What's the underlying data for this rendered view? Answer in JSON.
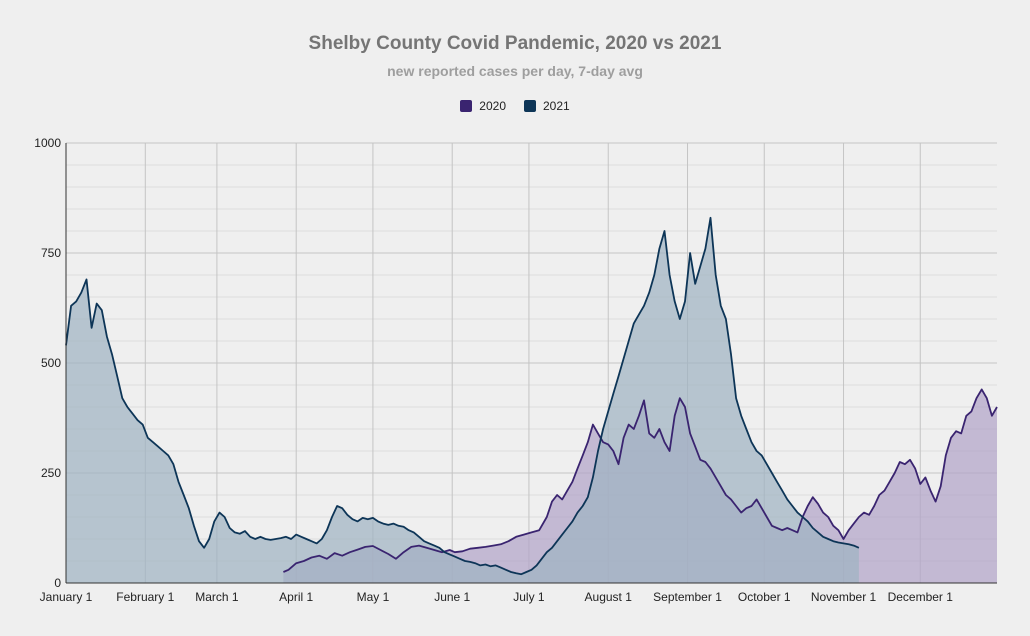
{
  "chart_data": {
    "type": "area",
    "title": "Shelby County Covid Pandemic, 2020 vs 2021",
    "subtitle": "new reported cases per day, 7-day avg",
    "xlabel": "",
    "ylabel": "",
    "ylim": [
      0,
      1000
    ],
    "yticks": [
      0,
      250,
      500,
      750,
      1000
    ],
    "xlim": [
      "01-01",
      "12-31"
    ],
    "xticks": [
      {
        "date": "01-01",
        "label": "January 1"
      },
      {
        "date": "02-01",
        "label": "February 1"
      },
      {
        "date": "03-01",
        "label": "March 1"
      },
      {
        "date": "04-01",
        "label": "April 1"
      },
      {
        "date": "05-01",
        "label": "May 1"
      },
      {
        "date": "06-01",
        "label": "June 1"
      },
      {
        "date": "07-01",
        "label": "July 1"
      },
      {
        "date": "08-01",
        "label": "August 1"
      },
      {
        "date": "09-01",
        "label": "September 1"
      },
      {
        "date": "10-01",
        "label": "October 1"
      },
      {
        "date": "11-01",
        "label": "November 1"
      },
      {
        "date": "12-01",
        "label": "December 1"
      }
    ],
    "grid": true,
    "legend_position": "top-center",
    "series": [
      {
        "name": "2020",
        "color": "#3a2470",
        "fill": "#b2a3c8",
        "points": [
          [
            "03-27",
            25
          ],
          [
            "03-29",
            30
          ],
          [
            "04-01",
            45
          ],
          [
            "04-04",
            50
          ],
          [
            "04-07",
            58
          ],
          [
            "04-10",
            62
          ],
          [
            "04-13",
            55
          ],
          [
            "04-16",
            68
          ],
          [
            "04-19",
            62
          ],
          [
            "04-22",
            70
          ],
          [
            "04-25",
            76
          ],
          [
            "04-28",
            82
          ],
          [
            "05-01",
            84
          ],
          [
            "05-04",
            75
          ],
          [
            "05-07",
            66
          ],
          [
            "05-10",
            55
          ],
          [
            "05-13",
            70
          ],
          [
            "05-16",
            82
          ],
          [
            "05-19",
            85
          ],
          [
            "05-22",
            80
          ],
          [
            "05-25",
            75
          ],
          [
            "05-28",
            70
          ],
          [
            "05-31",
            75
          ],
          [
            "06-02",
            70
          ],
          [
            "06-05",
            72
          ],
          [
            "06-08",
            78
          ],
          [
            "06-11",
            80
          ],
          [
            "06-14",
            82
          ],
          [
            "06-17",
            85
          ],
          [
            "06-20",
            88
          ],
          [
            "06-23",
            95
          ],
          [
            "06-26",
            105
          ],
          [
            "06-29",
            110
          ],
          [
            "07-02",
            115
          ],
          [
            "07-05",
            120
          ],
          [
            "07-08",
            150
          ],
          [
            "07-10",
            185
          ],
          [
            "07-12",
            200
          ],
          [
            "07-14",
            190
          ],
          [
            "07-16",
            210
          ],
          [
            "07-18",
            230
          ],
          [
            "07-20",
            260
          ],
          [
            "07-22",
            290
          ],
          [
            "07-24",
            320
          ],
          [
            "07-26",
            360
          ],
          [
            "07-28",
            340
          ],
          [
            "07-30",
            320
          ],
          [
            "08-01",
            315
          ],
          [
            "08-03",
            300
          ],
          [
            "08-05",
            270
          ],
          [
            "08-07",
            330
          ],
          [
            "08-09",
            360
          ],
          [
            "08-11",
            350
          ],
          [
            "08-13",
            380
          ],
          [
            "08-15",
            415
          ],
          [
            "08-17",
            340
          ],
          [
            "08-19",
            330
          ],
          [
            "08-21",
            350
          ],
          [
            "08-23",
            320
          ],
          [
            "08-25",
            300
          ],
          [
            "08-27",
            380
          ],
          [
            "08-29",
            420
          ],
          [
            "08-31",
            400
          ],
          [
            "09-02",
            340
          ],
          [
            "09-04",
            310
          ],
          [
            "09-06",
            280
          ],
          [
            "09-08",
            275
          ],
          [
            "09-10",
            260
          ],
          [
            "09-12",
            240
          ],
          [
            "09-14",
            220
          ],
          [
            "09-16",
            200
          ],
          [
            "09-18",
            190
          ],
          [
            "09-20",
            175
          ],
          [
            "09-22",
            160
          ],
          [
            "09-24",
            170
          ],
          [
            "09-26",
            175
          ],
          [
            "09-28",
            190
          ],
          [
            "09-30",
            170
          ],
          [
            "10-02",
            150
          ],
          [
            "10-04",
            130
          ],
          [
            "10-06",
            125
          ],
          [
            "10-08",
            120
          ],
          [
            "10-10",
            125
          ],
          [
            "10-12",
            120
          ],
          [
            "10-14",
            115
          ],
          [
            "10-16",
            150
          ],
          [
            "10-18",
            175
          ],
          [
            "10-20",
            195
          ],
          [
            "10-22",
            180
          ],
          [
            "10-24",
            160
          ],
          [
            "10-26",
            150
          ],
          [
            "10-28",
            130
          ],
          [
            "10-30",
            120
          ],
          [
            "11-01",
            100
          ],
          [
            "11-03",
            120
          ],
          [
            "11-05",
            135
          ],
          [
            "11-07",
            150
          ],
          [
            "11-09",
            160
          ],
          [
            "11-11",
            155
          ],
          [
            "11-13",
            175
          ],
          [
            "11-15",
            200
          ],
          [
            "11-17",
            210
          ],
          [
            "11-19",
            230
          ],
          [
            "11-21",
            250
          ],
          [
            "11-23",
            275
          ],
          [
            "11-25",
            270
          ],
          [
            "11-27",
            280
          ],
          [
            "11-29",
            260
          ],
          [
            "12-01",
            225
          ],
          [
            "12-03",
            240
          ],
          [
            "12-05",
            210
          ],
          [
            "12-07",
            185
          ],
          [
            "12-09",
            220
          ],
          [
            "12-11",
            290
          ],
          [
            "12-13",
            330
          ],
          [
            "12-15",
            345
          ],
          [
            "12-17",
            340
          ],
          [
            "12-19",
            380
          ],
          [
            "12-21",
            390
          ],
          [
            "12-23",
            420
          ],
          [
            "12-25",
            440
          ],
          [
            "12-27",
            420
          ],
          [
            "12-29",
            380
          ],
          [
            "12-31",
            400
          ]
        ]
      },
      {
        "name": "2021",
        "color": "#0d3557",
        "fill": "#9fb3c2",
        "points": [
          [
            "01-01",
            540
          ],
          [
            "01-03",
            630
          ],
          [
            "01-05",
            640
          ],
          [
            "01-07",
            660
          ],
          [
            "01-09",
            690
          ],
          [
            "01-11",
            580
          ],
          [
            "01-13",
            635
          ],
          [
            "01-15",
            620
          ],
          [
            "01-17",
            560
          ],
          [
            "01-19",
            520
          ],
          [
            "01-21",
            470
          ],
          [
            "01-23",
            420
          ],
          [
            "01-25",
            400
          ],
          [
            "01-27",
            385
          ],
          [
            "01-29",
            370
          ],
          [
            "01-31",
            360
          ],
          [
            "02-02",
            330
          ],
          [
            "02-04",
            320
          ],
          [
            "02-06",
            310
          ],
          [
            "02-08",
            300
          ],
          [
            "02-10",
            290
          ],
          [
            "02-12",
            270
          ],
          [
            "02-14",
            230
          ],
          [
            "02-16",
            200
          ],
          [
            "02-18",
            170
          ],
          [
            "02-20",
            130
          ],
          [
            "02-22",
            95
          ],
          [
            "02-24",
            80
          ],
          [
            "02-26",
            100
          ],
          [
            "02-28",
            140
          ],
          [
            "03-02",
            160
          ],
          [
            "03-04",
            150
          ],
          [
            "03-06",
            125
          ],
          [
            "03-08",
            115
          ],
          [
            "03-10",
            112
          ],
          [
            "03-12",
            118
          ],
          [
            "03-14",
            105
          ],
          [
            "03-16",
            100
          ],
          [
            "03-18",
            105
          ],
          [
            "03-20",
            100
          ],
          [
            "03-22",
            98
          ],
          [
            "03-24",
            100
          ],
          [
            "03-26",
            102
          ],
          [
            "03-28",
            105
          ],
          [
            "03-30",
            100
          ],
          [
            "04-01",
            110
          ],
          [
            "04-03",
            105
          ],
          [
            "04-05",
            100
          ],
          [
            "04-07",
            95
          ],
          [
            "04-09",
            90
          ],
          [
            "04-11",
            100
          ],
          [
            "04-13",
            120
          ],
          [
            "04-15",
            150
          ],
          [
            "04-17",
            175
          ],
          [
            "04-19",
            170
          ],
          [
            "04-21",
            155
          ],
          [
            "04-23",
            145
          ],
          [
            "04-25",
            140
          ],
          [
            "04-27",
            148
          ],
          [
            "04-29",
            145
          ],
          [
            "05-01",
            148
          ],
          [
            "05-03",
            140
          ],
          [
            "05-05",
            135
          ],
          [
            "05-07",
            132
          ],
          [
            "05-09",
            135
          ],
          [
            "05-11",
            130
          ],
          [
            "05-13",
            128
          ],
          [
            "05-15",
            120
          ],
          [
            "05-17",
            115
          ],
          [
            "05-19",
            105
          ],
          [
            "05-21",
            95
          ],
          [
            "05-23",
            90
          ],
          [
            "05-25",
            85
          ],
          [
            "05-27",
            80
          ],
          [
            "05-29",
            70
          ],
          [
            "05-31",
            65
          ],
          [
            "06-02",
            60
          ],
          [
            "06-04",
            55
          ],
          [
            "06-06",
            50
          ],
          [
            "06-08",
            48
          ],
          [
            "06-10",
            45
          ],
          [
            "06-12",
            40
          ],
          [
            "06-14",
            42
          ],
          [
            "06-16",
            38
          ],
          [
            "06-18",
            40
          ],
          [
            "06-20",
            35
          ],
          [
            "06-22",
            30
          ],
          [
            "06-24",
            25
          ],
          [
            "06-26",
            22
          ],
          [
            "06-28",
            20
          ],
          [
            "06-30",
            25
          ],
          [
            "07-02",
            30
          ],
          [
            "07-04",
            40
          ],
          [
            "07-06",
            55
          ],
          [
            "07-08",
            70
          ],
          [
            "07-10",
            80
          ],
          [
            "07-12",
            95
          ],
          [
            "07-14",
            110
          ],
          [
            "07-16",
            125
          ],
          [
            "07-18",
            140
          ],
          [
            "07-20",
            160
          ],
          [
            "07-22",
            175
          ],
          [
            "07-24",
            195
          ],
          [
            "07-26",
            240
          ],
          [
            "07-28",
            300
          ],
          [
            "07-30",
            350
          ],
          [
            "08-01",
            390
          ],
          [
            "08-03",
            430
          ],
          [
            "08-05",
            470
          ],
          [
            "08-07",
            510
          ],
          [
            "08-09",
            550
          ],
          [
            "08-11",
            590
          ],
          [
            "08-13",
            610
          ],
          [
            "08-15",
            630
          ],
          [
            "08-17",
            660
          ],
          [
            "08-19",
            700
          ],
          [
            "08-21",
            760
          ],
          [
            "08-23",
            800
          ],
          [
            "08-25",
            700
          ],
          [
            "08-27",
            640
          ],
          [
            "08-29",
            600
          ],
          [
            "08-31",
            640
          ],
          [
            "09-02",
            750
          ],
          [
            "09-04",
            680
          ],
          [
            "09-06",
            720
          ],
          [
            "09-08",
            760
          ],
          [
            "09-10",
            830
          ],
          [
            "09-12",
            700
          ],
          [
            "09-14",
            630
          ],
          [
            "09-16",
            600
          ],
          [
            "09-18",
            520
          ],
          [
            "09-20",
            420
          ],
          [
            "09-22",
            380
          ],
          [
            "09-24",
            350
          ],
          [
            "09-26",
            320
          ],
          [
            "09-28",
            300
          ],
          [
            "09-30",
            290
          ],
          [
            "10-02",
            270
          ],
          [
            "10-04",
            250
          ],
          [
            "10-06",
            230
          ],
          [
            "10-08",
            210
          ],
          [
            "10-10",
            190
          ],
          [
            "10-12",
            175
          ],
          [
            "10-14",
            160
          ],
          [
            "10-16",
            150
          ],
          [
            "10-18",
            140
          ],
          [
            "10-20",
            125
          ],
          [
            "10-22",
            115
          ],
          [
            "10-24",
            105
          ],
          [
            "10-26",
            100
          ],
          [
            "10-28",
            95
          ],
          [
            "10-30",
            92
          ],
          [
            "11-01",
            90
          ],
          [
            "11-03",
            88
          ],
          [
            "11-05",
            85
          ],
          [
            "11-07",
            80
          ]
        ]
      }
    ]
  }
}
